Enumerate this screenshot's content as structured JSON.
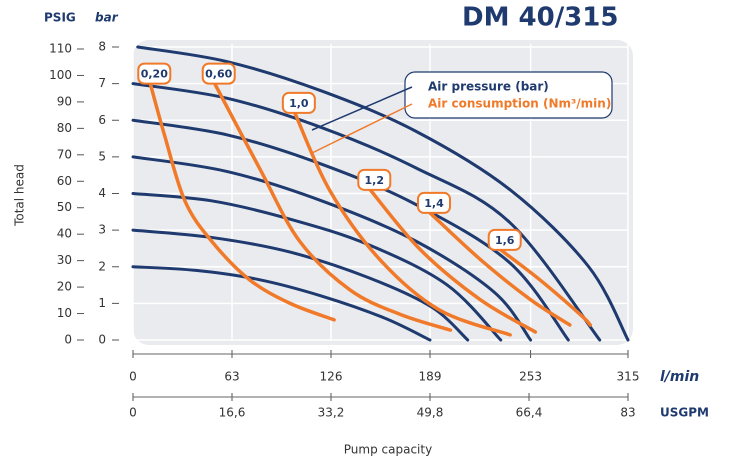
{
  "chart_data": {
    "type": "line",
    "title": "DM 40/315",
    "y_label": "Total head",
    "x_label": "Pump capacity",
    "y_unit": "PSIG",
    "y2_unit": "bar",
    "x_unit": "l/min",
    "x2_unit": "USGPM",
    "ylim": [
      0,
      110
    ],
    "yticks": [
      0,
      10,
      20,
      30,
      40,
      50,
      60,
      70,
      80,
      90,
      100,
      110
    ],
    "y2lim": [
      0,
      8
    ],
    "y2ticks": [
      0,
      1,
      2,
      3,
      4,
      5,
      6,
      7,
      8
    ],
    "xlim": [
      0,
      315
    ],
    "xticks": [
      0,
      63,
      126,
      189,
      253,
      315
    ],
    "x2lim": [
      0,
      83
    ],
    "x2ticks": [
      0,
      {
        "value": 16.6,
        "label": "16,6"
      },
      {
        "value": 33.2,
        "label": "33,2"
      },
      {
        "value": 49.8,
        "label": "49,8"
      },
      {
        "value": 66.4,
        "label": "66,4"
      },
      83
    ],
    "grid": true,
    "legend": [
      {
        "label": "Air pressure (bar)",
        "color": "#1f3a6e"
      },
      {
        "label": "Air consumption (Nm³/min)",
        "color": "#f07a2a"
      }
    ],
    "series": [
      {
        "color": "#1f3a6e",
        "axis": "y2",
        "x": [
          0,
          40,
          80,
          120,
          160,
          189
        ],
        "values": [
          2.0,
          1.9,
          1.65,
          1.2,
          0.6,
          0
        ]
      },
      {
        "color": "#1f3a6e",
        "axis": "y2",
        "x": [
          0,
          50,
          100,
          150,
          190,
          213
        ],
        "values": [
          3.0,
          2.8,
          2.4,
          1.7,
          0.9,
          0
        ]
      },
      {
        "color": "#1f3a6e",
        "axis": "y2",
        "x": [
          0,
          50,
          100,
          150,
          200,
          234
        ],
        "values": [
          4.0,
          3.8,
          3.3,
          2.6,
          1.5,
          0
        ]
      },
      {
        "color": "#1f3a6e",
        "axis": "y2",
        "x": [
          0,
          60,
          120,
          180,
          230,
          253
        ],
        "values": [
          5.0,
          4.6,
          3.8,
          2.7,
          1.3,
          0
        ]
      },
      {
        "color": "#1f3a6e",
        "axis": "y2",
        "x": [
          0,
          60,
          120,
          180,
          240,
          277
        ],
        "values": [
          6.0,
          5.6,
          4.8,
          3.7,
          2.1,
          0
        ]
      },
      {
        "color": "#1f3a6e",
        "axis": "y2",
        "x": [
          0,
          60,
          120,
          180,
          240,
          297
        ],
        "values": [
          7.0,
          6.6,
          5.8,
          4.7,
          3.2,
          0
        ]
      },
      {
        "color": "#1f3a6e",
        "axis": "y2",
        "x": [
          3,
          60,
          120,
          180,
          240,
          290,
          315
        ],
        "values": [
          8.0,
          7.6,
          6.8,
          5.7,
          4.1,
          2.0,
          0
        ]
      },
      {
        "name": "0,20",
        "color": "#f07a2a",
        "axis": "y2",
        "x": [
          11,
          20,
          33,
          50,
          74,
          100,
          128
        ],
        "values": [
          7.0,
          5.6,
          3.8,
          2.7,
          1.65,
          1.0,
          0.55
        ]
      },
      {
        "name": "0,60",
        "color": "#f07a2a",
        "axis": "y2",
        "x": [
          52,
          81,
          106,
          138,
          170,
          202
        ],
        "values": [
          7.0,
          4.65,
          2.7,
          1.37,
          0.7,
          0.27
        ]
      },
      {
        "name": "1,0",
        "color": "#f07a2a",
        "axis": "y2",
        "x": [
          103,
          125,
          157,
          195,
          240
        ],
        "values": [
          6.2,
          4.1,
          2.2,
          0.82,
          0.14
        ]
      },
      {
        "name": "1,2",
        "color": "#f07a2a",
        "axis": "y2",
        "x": [
          151,
          183,
          221,
          256
        ],
        "values": [
          4.1,
          2.46,
          1.1,
          0.22
        ]
      },
      {
        "name": "1,4",
        "color": "#f07a2a",
        "axis": "y2",
        "x": [
          189,
          221,
          253,
          278
        ],
        "values": [
          3.47,
          2.2,
          1.1,
          0.41
        ]
      },
      {
        "name": "1,6",
        "color": "#f07a2a",
        "axis": "y2",
        "x": [
          234,
          259,
          285,
          291
        ],
        "values": [
          2.46,
          1.64,
          0.68,
          0.41
        ]
      }
    ]
  }
}
